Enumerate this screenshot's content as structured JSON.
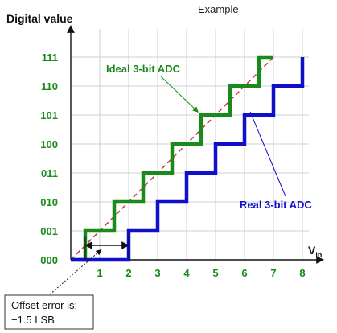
{
  "chart_data": {
    "type": "line",
    "title": "Example",
    "ylabel": "Digital value",
    "xlabel_main": "V",
    "xlabel_sub": "in",
    "x_ticks": [
      "1",
      "2",
      "3",
      "4",
      "5",
      "6",
      "7",
      "8"
    ],
    "y_ticks": [
      "000",
      "001",
      "010",
      "011",
      "100",
      "101",
      "110",
      "111"
    ],
    "xlim": [
      0,
      8.5
    ],
    "ylim": [
      0,
      7.6
    ],
    "grid": true,
    "series": [
      {
        "name": "Ideal 3-bit ADC",
        "kind": "staircase",
        "color": "#1a8a1a",
        "x": [
          0,
          0.5,
          0.5,
          1.5,
          1.5,
          2.5,
          2.5,
          3.5,
          3.5,
          4.5,
          4.5,
          5.5,
          5.5,
          6.5,
          6.5,
          7.0
        ],
        "y": [
          0,
          0,
          1,
          1,
          2,
          2,
          3,
          3,
          4,
          4,
          5,
          5,
          6,
          6,
          7,
          7
        ]
      },
      {
        "name": "Real 3-bit ADC",
        "kind": "staircase",
        "color": "#1010cc",
        "x": [
          0,
          2.0,
          2.0,
          3.0,
          3.0,
          4.0,
          4.0,
          5.0,
          5.0,
          6.0,
          6.0,
          7.0,
          7.0,
          8.0,
          8.0
        ],
        "y": [
          0,
          0,
          1,
          1,
          2,
          2,
          3,
          3,
          4,
          4,
          5,
          5,
          6,
          6,
          7
        ]
      }
    ],
    "ideal_line": {
      "color": "#c0392b",
      "from": [
        0,
        0
      ],
      "to": [
        7.0,
        7.0
      ]
    },
    "offset_arrow": {
      "from": [
        0.5,
        0.5
      ],
      "to": [
        2.0,
        0.5
      ]
    },
    "annotations": {
      "ideal_label": "Ideal 3-bit ADC",
      "real_label": "Real 3-bit ADC",
      "offset_line1": "Offset error is:",
      "offset_line2": "−1.5 LSB"
    }
  }
}
